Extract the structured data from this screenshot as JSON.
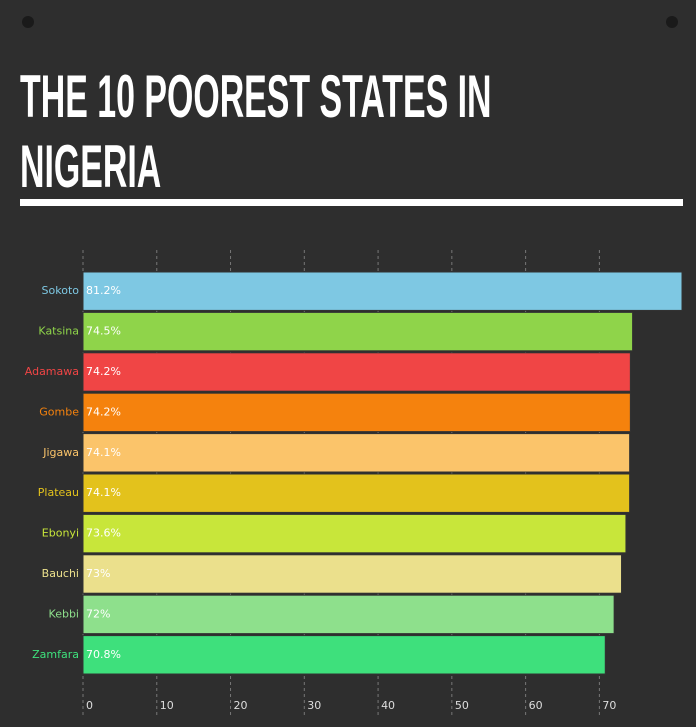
{
  "chart_data": {
    "type": "hbar",
    "title": "THE 10 POOREST STATES IN NIGERIA",
    "categories": [
      "Sokoto",
      "Katsina",
      "Adamawa",
      "Gombe",
      "Jigawa",
      "Plateau",
      "Ebonyi",
      "Bauchi",
      "Kebbi",
      "Zamfara"
    ],
    "values": [
      81.2,
      74.5,
      74.2,
      74.2,
      74.1,
      74.1,
      73.6,
      73,
      72,
      70.8
    ],
    "value_labels": [
      "81.2%",
      "74.5%",
      "74.2%",
      "74.2%",
      "74.1%",
      "74.1%",
      "73.6%",
      "73%",
      "72%",
      "70.8%"
    ],
    "colors": [
      "#7ec8e3",
      "#8fd44a",
      "#f04545",
      "#f5820d",
      "#fbc46a",
      "#e3c21c",
      "#c8e63a",
      "#ebe08c",
      "#8ee08c",
      "#3ee07c"
    ],
    "xlim": [
      0,
      81.2
    ],
    "xticks": [
      0,
      10,
      20,
      30,
      40,
      50,
      60,
      70
    ],
    "grid": true
  }
}
